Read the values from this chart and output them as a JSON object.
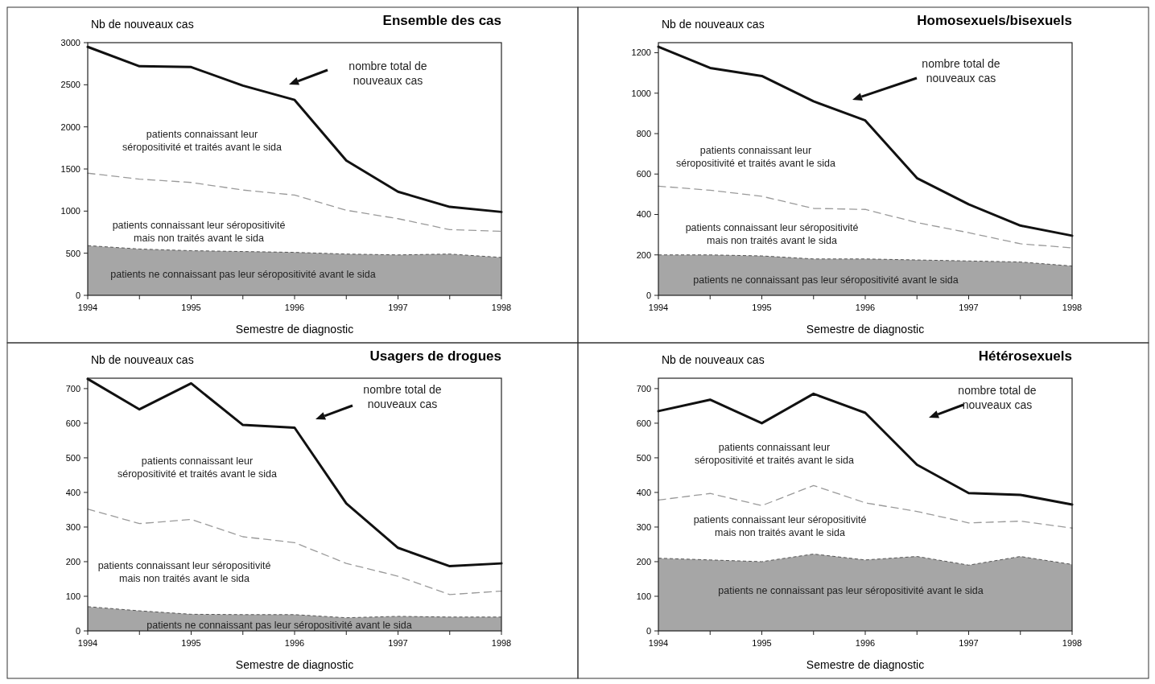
{
  "chart_data": [
    {
      "type": "line",
      "title": "Ensemble des cas",
      "xlabel": "Semestre de diagnostic",
      "ylabel": "Nb de nouveaux cas",
      "x": [
        1994,
        1994.5,
        1995,
        1995.5,
        1996,
        1996.5,
        1997,
        1997.5,
        1998
      ],
      "xlim": [
        1994,
        1998
      ],
      "xticks": [
        1994,
        {
          "value": 1994.5,
          "label": null
        },
        1995,
        {
          "value": 1995.5,
          "label": null
        },
        1996,
        {
          "value": 1996.5,
          "label": null
        },
        1997,
        {
          "value": 1997.5,
          "label": null
        },
        1998
      ],
      "ylim": [
        0,
        3000
      ],
      "yticks": [
        0,
        500,
        1000,
        1500,
        2000,
        2500,
        3000
      ],
      "series": [
        {
          "type": "area",
          "color": "#a6a6a6",
          "values": [
            590,
            550,
            530,
            520,
            510,
            490,
            480,
            490,
            450
          ]
        },
        {
          "type": "line",
          "line_style": "dashed",
          "color": "#9a9a9a",
          "values": [
            1450,
            1380,
            1340,
            1250,
            1190,
            1010,
            910,
            780,
            760
          ]
        },
        {
          "color": "#111111",
          "values": [
            2950,
            2720,
            2710,
            2490,
            2320,
            1600,
            1230,
            1050,
            990
          ]
        }
      ],
      "annotations": [
        "nombre total de\nnouveaux cas",
        "patients connaissant leur\nséropositivité et traités avant le sida",
        "patients connaissant leur séropositivité\nmais non traités avant le sida",
        "patients ne connaissant pas leur séropositivité avant le sida"
      ]
    },
    {
      "type": "line",
      "title": "Homosexuels/bisexuels",
      "xlabel": "Semestre de diagnostic",
      "ylabel": "Nb de nouveaux cas",
      "x": [
        1994,
        1994.5,
        1995,
        1995.5,
        1996,
        1996.5,
        1997,
        1997.5,
        1998
      ],
      "xlim": [
        1994,
        1998
      ],
      "xticks": [
        1994,
        {
          "value": 1994.5,
          "label": null
        },
        1995,
        {
          "value": 1995.5,
          "label": null
        },
        1996,
        {
          "value": 1996.5,
          "label": null
        },
        1997,
        {
          "value": 1997.5,
          "label": null
        },
        1998
      ],
      "ylim": [
        0,
        1250
      ],
      "yticks": [
        0,
        200,
        400,
        600,
        800,
        1000,
        1200
      ],
      "series": [
        {
          "type": "area",
          "color": "#a6a6a6",
          "values": [
            200,
            200,
            195,
            180,
            180,
            175,
            170,
            165,
            145
          ]
        },
        {
          "type": "line",
          "line_style": "dashed",
          "color": "#9a9a9a",
          "values": [
            540,
            520,
            490,
            430,
            425,
            360,
            310,
            255,
            235
          ]
        },
        {
          "color": "#111111",
          "values": [
            1230,
            1125,
            1085,
            960,
            865,
            580,
            450,
            345,
            295
          ]
        }
      ],
      "annotations": [
        "nombre total de\nnouveaux cas",
        "patients connaissant leur\nséropositivité et traités avant le sida",
        "patients connaissant leur séropositivité\nmais non traités avant le sida",
        "patients ne connaissant pas leur séropositivité avant le sida"
      ]
    },
    {
      "type": "line",
      "title": "Usagers de drogues",
      "xlabel": "Semestre de diagnostic",
      "ylabel": "Nb de nouveaux cas",
      "x": [
        1994,
        1994.5,
        1995,
        1995.5,
        1996,
        1996.5,
        1997,
        1997.5,
        1998
      ],
      "xlim": [
        1994,
        1998
      ],
      "xticks": [
        1994,
        {
          "value": 1994.5,
          "label": null
        },
        1995,
        {
          "value": 1995.5,
          "label": null
        },
        1996,
        {
          "value": 1996.5,
          "label": null
        },
        1997,
        {
          "value": 1997.5,
          "label": null
        },
        1998
      ],
      "ylim": [
        0,
        730
      ],
      "yticks": [
        0,
        100,
        200,
        300,
        400,
        500,
        600,
        700
      ],
      "series": [
        {
          "type": "area",
          "color": "#a6a6a6",
          "values": [
            70,
            58,
            48,
            47,
            47,
            38,
            42,
            40,
            40
          ]
        },
        {
          "type": "line",
          "line_style": "dashed",
          "color": "#9a9a9a",
          "values": [
            352,
            310,
            322,
            272,
            255,
            195,
            158,
            105,
            115
          ]
        },
        {
          "color": "#111111",
          "values": [
            728,
            640,
            715,
            595,
            587,
            368,
            240,
            187,
            195
          ]
        }
      ],
      "annotations": [
        "nombre total de\nnouveaux cas",
        "patients connaissant leur\nséropositivité et traités avant le sida",
        "patients connaissant leur séropositivité\nmais non traités avant le sida",
        "patients ne connaissant pas leur séropositivité avant le sida"
      ]
    },
    {
      "type": "line",
      "title": "Hétérosexuels",
      "xlabel": "Semestre de diagnostic",
      "ylabel": "Nb de nouveaux cas",
      "x": [
        1994,
        1994.5,
        1995,
        1995.5,
        1996,
        1996.5,
        1997,
        1997.5,
        1998
      ],
      "xlim": [
        1994,
        1998
      ],
      "xticks": [
        1994,
        {
          "value": 1994.5,
          "label": null
        },
        1995,
        {
          "value": 1995.5,
          "label": null
        },
        1996,
        {
          "value": 1996.5,
          "label": null
        },
        1997,
        {
          "value": 1997.5,
          "label": null
        },
        1998
      ],
      "ylim": [
        0,
        730
      ],
      "yticks": [
        0,
        100,
        200,
        300,
        400,
        500,
        600,
        700
      ],
      "series": [
        {
          "type": "area",
          "color": "#a6a6a6",
          "values": [
            210,
            205,
            200,
            222,
            205,
            215,
            190,
            215,
            192
          ]
        },
        {
          "type": "line",
          "line_style": "dashed",
          "color": "#9a9a9a",
          "values": [
            378,
            397,
            362,
            420,
            370,
            345,
            312,
            317,
            297
          ]
        },
        {
          "color": "#111111",
          "values": [
            635,
            668,
            600,
            685,
            630,
            480,
            398,
            393,
            365
          ]
        }
      ],
      "annotations": [
        "nombre total de\nnouveaux cas",
        "patients connaissant leur\nséropositivité et traités avant le sida",
        "patients connaissant leur séropositivité\nmais non traités avant le sida",
        "patients ne connaissant pas leur séropositivité avant le sida"
      ]
    }
  ]
}
